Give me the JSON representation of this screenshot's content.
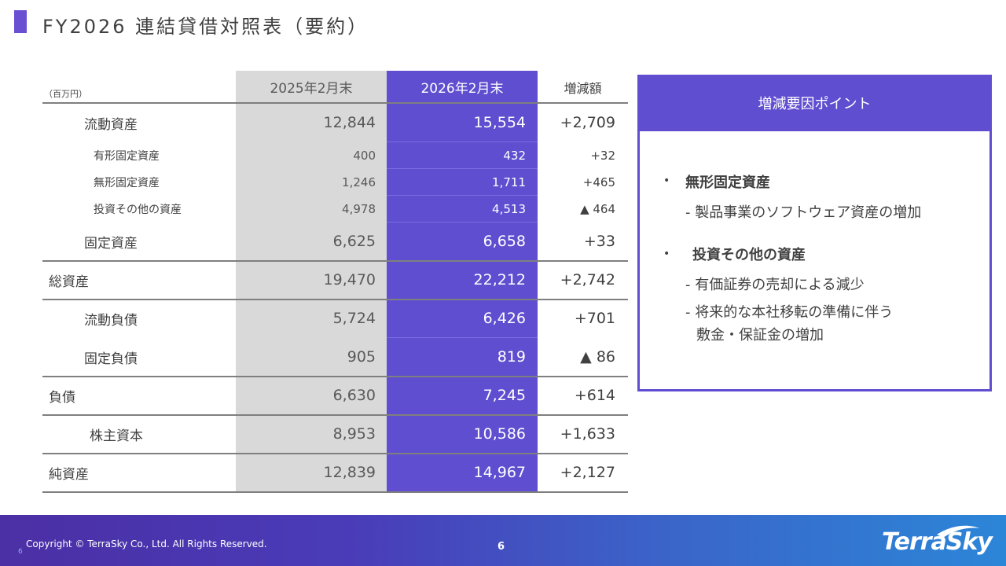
{
  "title": "FY2026 連結貸借対照表（要約）",
  "unit": "（百万円）",
  "table": {
    "headers": {
      "prev": "2025年2月末",
      "cur": "2026年2月末",
      "diff": "増減額"
    },
    "rows": [
      {
        "label": "流動資産",
        "prev": "12,844",
        "cur": "15,554",
        "diff": "+2,709"
      },
      {
        "label": "有形固定資産",
        "prev": "400",
        "cur": "432",
        "diff": "+32"
      },
      {
        "label": "無形固定資産",
        "prev": "1,246",
        "cur": "1,711",
        "diff": "+465"
      },
      {
        "label": "投資その他の資産",
        "prev": "4,978",
        "cur": "4,513",
        "diff": "▲ 464"
      },
      {
        "label": "固定資産",
        "prev": "6,625",
        "cur": "6,658",
        "diff": "+33"
      },
      {
        "label": "総資産",
        "prev": "19,470",
        "cur": "22,212",
        "diff": "+2,742"
      },
      {
        "label": "流動負債",
        "prev": "5,724",
        "cur": "6,426",
        "diff": "+701"
      },
      {
        "label": "固定負債",
        "prev": "905",
        "cur": "819",
        "diff": "▲ 86"
      },
      {
        "label": "負債",
        "prev": "6,630",
        "cur": "7,245",
        "diff": "+614"
      },
      {
        "label": "株主資本",
        "prev": "8,953",
        "cur": "10,586",
        "diff": "+1,633"
      },
      {
        "label": "純資産",
        "prev": "12,839",
        "cur": "14,967",
        "diff": "+2,127"
      }
    ]
  },
  "panel": {
    "title": "増減要因ポイント",
    "bullet": "•",
    "points": [
      {
        "head": "無形固定資産",
        "subs": [
          "- 製品事業のソフトウェア資産の増加"
        ]
      },
      {
        "head": "投資その他の資産",
        "subs": [
          "- 有価証券の売却による減少",
          "- 将来的な本社移転の準備に伴う",
          "敷金・保証金の増加"
        ]
      }
    ]
  },
  "footer": {
    "copyright": "Copyright © TerraSky Co., Ltd. All Rights Reserved.",
    "page": "6",
    "page_small": "6",
    "logo": "TerraSky"
  },
  "colors": {
    "accent": "#5f4ed0",
    "prev_col": "#d9d9d9",
    "text": "#404040"
  }
}
